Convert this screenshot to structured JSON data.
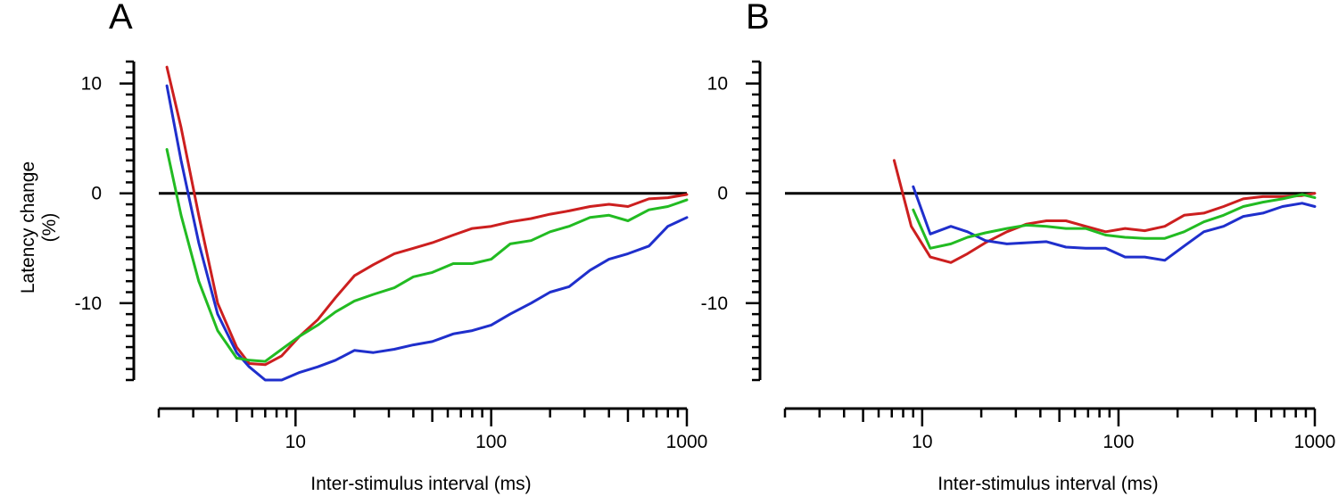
{
  "chart_data": [
    {
      "type": "line",
      "panel": "A",
      "x_scale": "log",
      "xlim": [
        2,
        1000
      ],
      "ylim": [
        -17,
        12
      ],
      "xlabel": "Inter-stimulus interval (ms)",
      "ylabel": "Latency change",
      "ylabel_unit": "(%)",
      "x_tick_labels": [
        {
          "value": 10,
          "label": "10"
        },
        {
          "value": 100,
          "label": "100"
        },
        {
          "value": 1000,
          "label": "1000"
        }
      ],
      "y_tick_labels": [
        {
          "value": 10,
          "label": "10"
        },
        {
          "value": 0,
          "label": "0"
        },
        {
          "value": -10,
          "label": "-10"
        }
      ],
      "series": [
        {
          "name": "red",
          "color": "#cc1f1f",
          "x": [
            2.2,
            2.6,
            3.2,
            4.0,
            5.0,
            5.8,
            7.0,
            8.5,
            10.5,
            13,
            16,
            20,
            25,
            32,
            40,
            50,
            64,
            80,
            100,
            125,
            160,
            200,
            250,
            320,
            400,
            500,
            640,
            800,
            1000
          ],
          "y": [
            11.5,
            6,
            -2,
            -10,
            -14,
            -15.5,
            -15.6,
            -14.8,
            -13,
            -11.5,
            -9.5,
            -7.5,
            -6.5,
            -5.5,
            -5,
            -4.5,
            -3.8,
            -3.2,
            -3,
            -2.6,
            -2.3,
            -1.9,
            -1.6,
            -1.2,
            -1,
            -1.2,
            -0.5,
            -0.4,
            -0.1
          ]
        },
        {
          "name": "blue",
          "color": "#1f2fcc",
          "x": [
            2.2,
            2.6,
            3.2,
            4.0,
            5.0,
            5.8,
            7.0,
            8.5,
            10.5,
            13,
            16,
            20,
            25,
            32,
            40,
            50,
            64,
            80,
            100,
            125,
            160,
            200,
            250,
            320,
            400,
            500,
            640,
            800,
            1000
          ],
          "y": [
            9.8,
            3,
            -4.5,
            -11,
            -14.5,
            -15.8,
            -17,
            -17,
            -16.3,
            -15.8,
            -15.2,
            -14.3,
            -14.5,
            -14.2,
            -13.8,
            -13.5,
            -12.8,
            -12.5,
            -12,
            -11,
            -10,
            -9,
            -8.5,
            -7,
            -6,
            -5.5,
            -4.8,
            -3,
            -2.2
          ]
        },
        {
          "name": "green",
          "color": "#22bb22",
          "x": [
            2.2,
            2.6,
            3.2,
            4.0,
            5.0,
            5.8,
            7.0,
            8.5,
            10.5,
            13,
            16,
            20,
            25,
            32,
            40,
            50,
            64,
            80,
            100,
            125,
            160,
            200,
            250,
            320,
            400,
            500,
            640,
            800,
            1000
          ],
          "y": [
            4,
            -2,
            -8,
            -12.5,
            -15,
            -15.2,
            -15.3,
            -14.2,
            -13,
            -12,
            -10.8,
            -9.8,
            -9.2,
            -8.6,
            -7.6,
            -7.2,
            -6.4,
            -6.4,
            -6,
            -4.6,
            -4.3,
            -3.5,
            -3,
            -2.2,
            -2,
            -2.5,
            -1.5,
            -1.2,
            -0.6
          ]
        }
      ]
    },
    {
      "type": "line",
      "panel": "B",
      "x_scale": "log",
      "xlim": [
        2,
        1000
      ],
      "ylim": [
        -17,
        12
      ],
      "xlabel": "Inter-stimulus interval (ms)",
      "ylabel": "",
      "x_tick_labels": [
        {
          "value": 10,
          "label": "10"
        },
        {
          "value": 100,
          "label": "100"
        },
        {
          "value": 1000,
          "label": "1000"
        }
      ],
      "y_tick_labels": [
        {
          "value": 10,
          "label": "10"
        },
        {
          "value": 0,
          "label": "0"
        },
        {
          "value": -10,
          "label": "-10"
        }
      ],
      "series": [
        {
          "name": "red",
          "color": "#cc1f1f",
          "x": [
            7.2,
            8.8,
            11,
            14,
            17,
            21,
            27,
            34,
            43,
            54,
            68,
            86,
            108,
            136,
            172,
            216,
            272,
            343,
            432,
            544,
            685,
            862,
            1000
          ],
          "y": [
            3,
            -3,
            -5.8,
            -6.3,
            -5.5,
            -4.5,
            -3.5,
            -2.8,
            -2.5,
            -2.5,
            -3,
            -3.5,
            -3.2,
            -3.4,
            -3,
            -2,
            -1.8,
            -1.2,
            -0.5,
            -0.3,
            -0.3,
            -0.2,
            0
          ]
        },
        {
          "name": "blue",
          "color": "#1f2fcc",
          "x": [
            9,
            11,
            14,
            17,
            21,
            27,
            34,
            43,
            54,
            68,
            86,
            108,
            136,
            172,
            216,
            272,
            343,
            432,
            544,
            685,
            862,
            1000
          ],
          "y": [
            0.6,
            -3.7,
            -3,
            -3.5,
            -4.3,
            -4.6,
            -4.5,
            -4.4,
            -4.9,
            -5,
            -5,
            -5.8,
            -5.8,
            -6.1,
            -4.8,
            -3.5,
            -3,
            -2.1,
            -1.8,
            -1.2,
            -0.9,
            -1.2
          ]
        },
        {
          "name": "green",
          "color": "#22bb22",
          "x": [
            9,
            11,
            14,
            17,
            21,
            27,
            34,
            43,
            54,
            68,
            86,
            108,
            136,
            172,
            216,
            272,
            343,
            432,
            544,
            685,
            862,
            1000
          ],
          "y": [
            -1.5,
            -5,
            -4.6,
            -4,
            -3.6,
            -3.2,
            -2.9,
            -3,
            -3.2,
            -3.2,
            -3.8,
            -4,
            -4.1,
            -4.1,
            -3.5,
            -2.6,
            -2,
            -1.2,
            -0.8,
            -0.5,
            -0.1,
            -0.4
          ]
        }
      ]
    }
  ]
}
